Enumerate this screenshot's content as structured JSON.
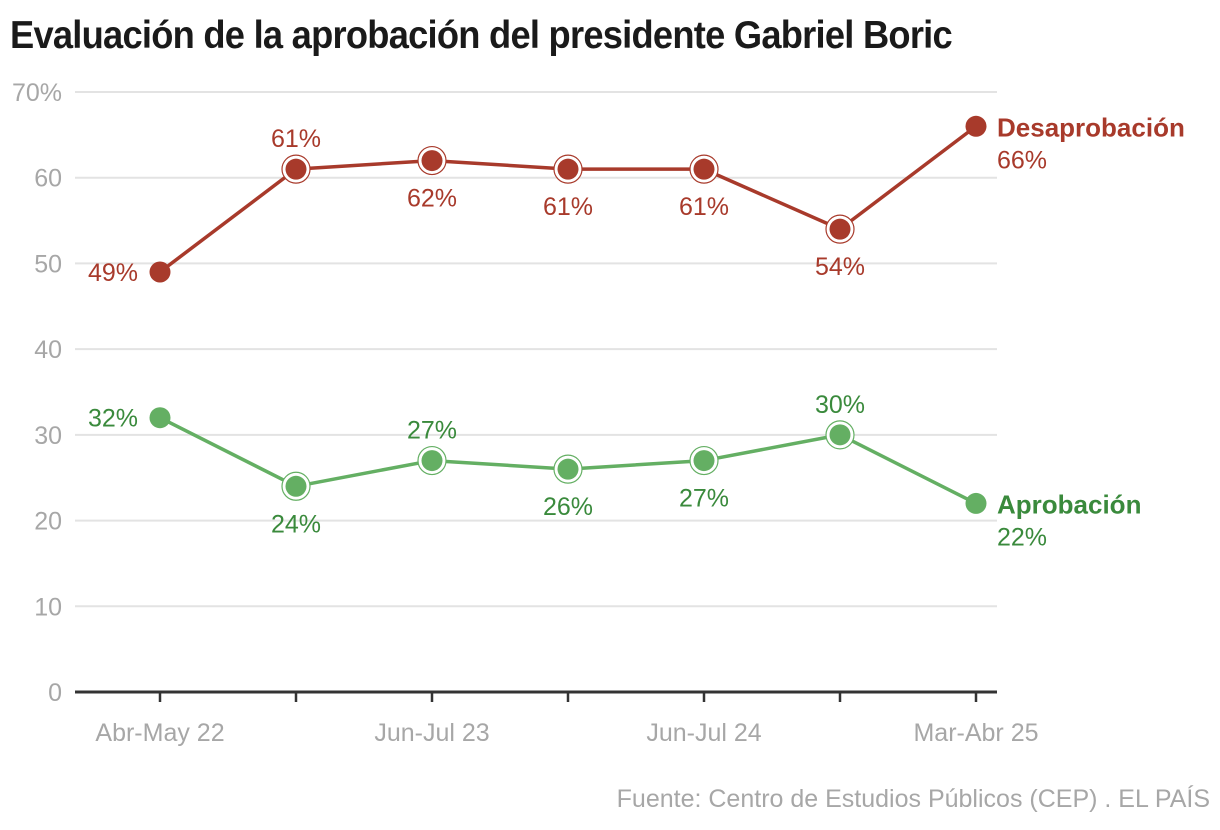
{
  "title": "Evaluación de la aprobación del presidente Gabriel Boric",
  "source": "Fuente: Centro de Estudios Públicos (CEP) . EL PAÍS",
  "chart_data": {
    "type": "line",
    "title": "Evaluación de la aprobación del presidente Gabriel Boric",
    "xlabel": "",
    "ylabel": "",
    "x": [
      "Abr-May 22",
      "",
      "Jun-Jul 23",
      "",
      "Jun-Jul 24",
      "",
      "Mar-Abr 25"
    ],
    "x_tick_labels": [
      "Abr-May 22",
      "Jun-Jul 23",
      "Jun-Jul 24",
      "Mar-Abr 25"
    ],
    "x_tick_label_indices": [
      0,
      2,
      4,
      6
    ],
    "ylim": [
      0,
      70
    ],
    "y_ticks": [
      0,
      10,
      20,
      30,
      40,
      50,
      60,
      70
    ],
    "y_tick_labels": [
      "0",
      "10",
      "20",
      "30",
      "40",
      "50",
      "60",
      "70%"
    ],
    "grid": true,
    "legend": "direct-labels-right",
    "series": [
      {
        "name": "Desaprobación",
        "color": "#a83a2b",
        "values": [
          49,
          61,
          62,
          61,
          61,
          54,
          66
        ],
        "labels": [
          "49%",
          "61%",
          "62%",
          "61%",
          "61%",
          "54%",
          "66%"
        ],
        "label_positions": [
          "left",
          "above",
          "below",
          "below",
          "below",
          "below",
          "end"
        ]
      },
      {
        "name": "Aprobación",
        "color": "#64af63",
        "label_color": "#3a8a3c",
        "values": [
          32,
          24,
          27,
          26,
          27,
          30,
          22
        ],
        "labels": [
          "32%",
          "24%",
          "27%",
          "26%",
          "27%",
          "30%",
          "22%"
        ],
        "label_positions": [
          "left",
          "below",
          "above",
          "below",
          "below",
          "above",
          "end"
        ]
      }
    ]
  }
}
